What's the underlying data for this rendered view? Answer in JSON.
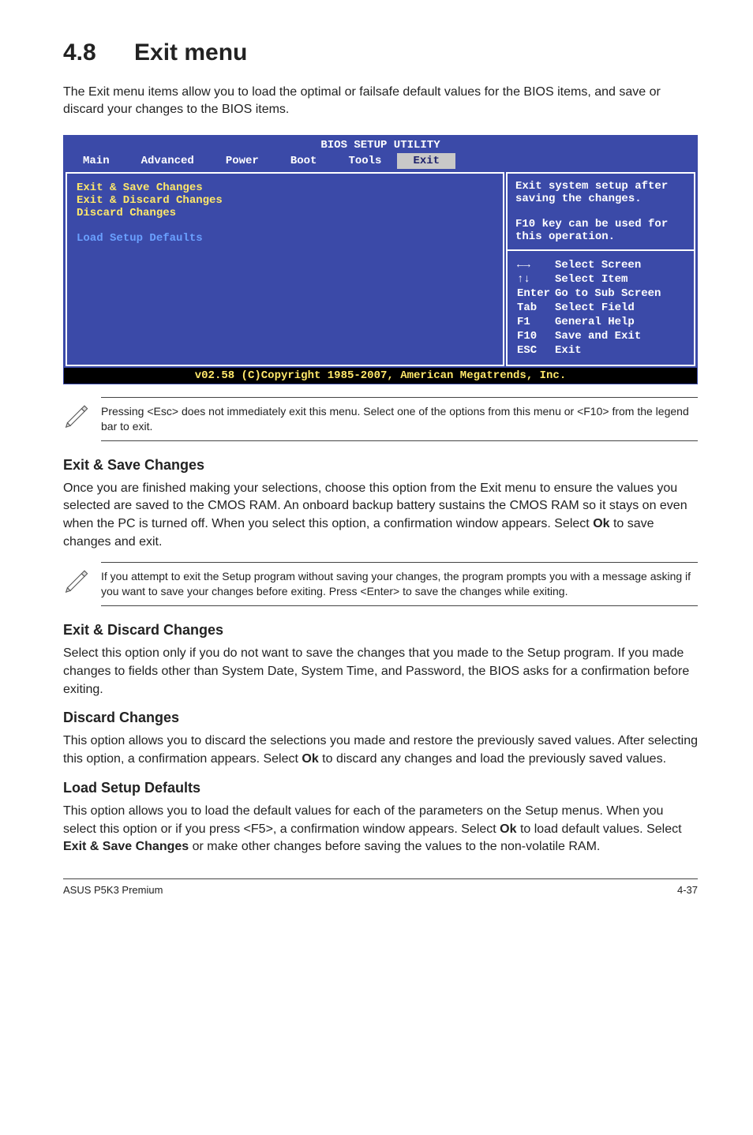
{
  "section": {
    "num": "4.8",
    "title": "Exit menu"
  },
  "lead": "The Exit menu items allow you to load the optimal or failsafe default values for the BIOS items, and save or discard your changes to the BIOS items.",
  "bios": {
    "title": "BIOS SETUP UTILITY",
    "tabs": [
      "Main",
      "Advanced",
      "Power",
      "Boot",
      "Tools",
      "Exit"
    ],
    "selected_tab": "Exit",
    "left_items": [
      {
        "label": "Exit & Save Changes",
        "dim": false
      },
      {
        "label": "Exit & Discard Changes",
        "dim": false
      },
      {
        "label": "Discard Changes",
        "dim": false
      },
      {
        "label": "",
        "dim": false
      },
      {
        "label": "Load Setup Defaults",
        "dim": true
      }
    ],
    "right_top": [
      "Exit system setup after saving the changes.",
      "",
      "F10 key can be used for this operation."
    ],
    "right_keys": [
      {
        "k": "←→",
        "v": "Select Screen"
      },
      {
        "k": "↑↓",
        "v": "Select Item"
      },
      {
        "k": "Enter",
        "v": "Go to Sub Screen"
      },
      {
        "k": "Tab",
        "v": "Select Field"
      },
      {
        "k": "F1",
        "v": "General Help"
      },
      {
        "k": "F10",
        "v": "Save and Exit"
      },
      {
        "k": "ESC",
        "v": "Exit"
      }
    ],
    "footer": "v02.58 (C)Copyright 1985-2007, American Megatrends, Inc."
  },
  "note1": "Pressing <Esc> does not immediately exit this menu. Select one of the options from this menu or <F10> from the legend bar to exit.",
  "exit_save": {
    "h": "Exit & Save Changes",
    "p": "Once you are finished making your selections, choose this option from the Exit menu to ensure the values you selected are saved to the CMOS RAM. An onboard backup battery sustains the CMOS RAM so it stays on even when the PC is turned off. When you select this option, a confirmation window appears. Select Ok to save changes and exit."
  },
  "note2": "If you attempt to exit the Setup program without saving your changes, the program prompts you with a message asking if you want to save your changes before exiting. Press <Enter> to save the changes while exiting.",
  "exit_discard": {
    "h": "Exit & Discard Changes",
    "p": "Select this option only if you do not want to save the changes that you  made to the Setup program. If you made changes to fields other than System Date, System Time, and Password, the BIOS asks for a confirmation before exiting."
  },
  "discard": {
    "h": "Discard Changes",
    "p": "This option allows you to discard the selections you made and restore the previously saved values. After selecting this option, a confirmation appears. Select Ok to discard any changes and load the previously saved values."
  },
  "load_def": {
    "h": "Load Setup Defaults",
    "p": "This option allows you to load the default values for each of the parameters on the Setup menus. When you select this option or if you press <F5>, a confirmation window appears. Select Ok to load default values. Select Exit & Save Changes or make other changes before saving the values to the non-volatile RAM."
  },
  "footer": {
    "left": "ASUS P5K3 Premium",
    "right": "4-37"
  }
}
